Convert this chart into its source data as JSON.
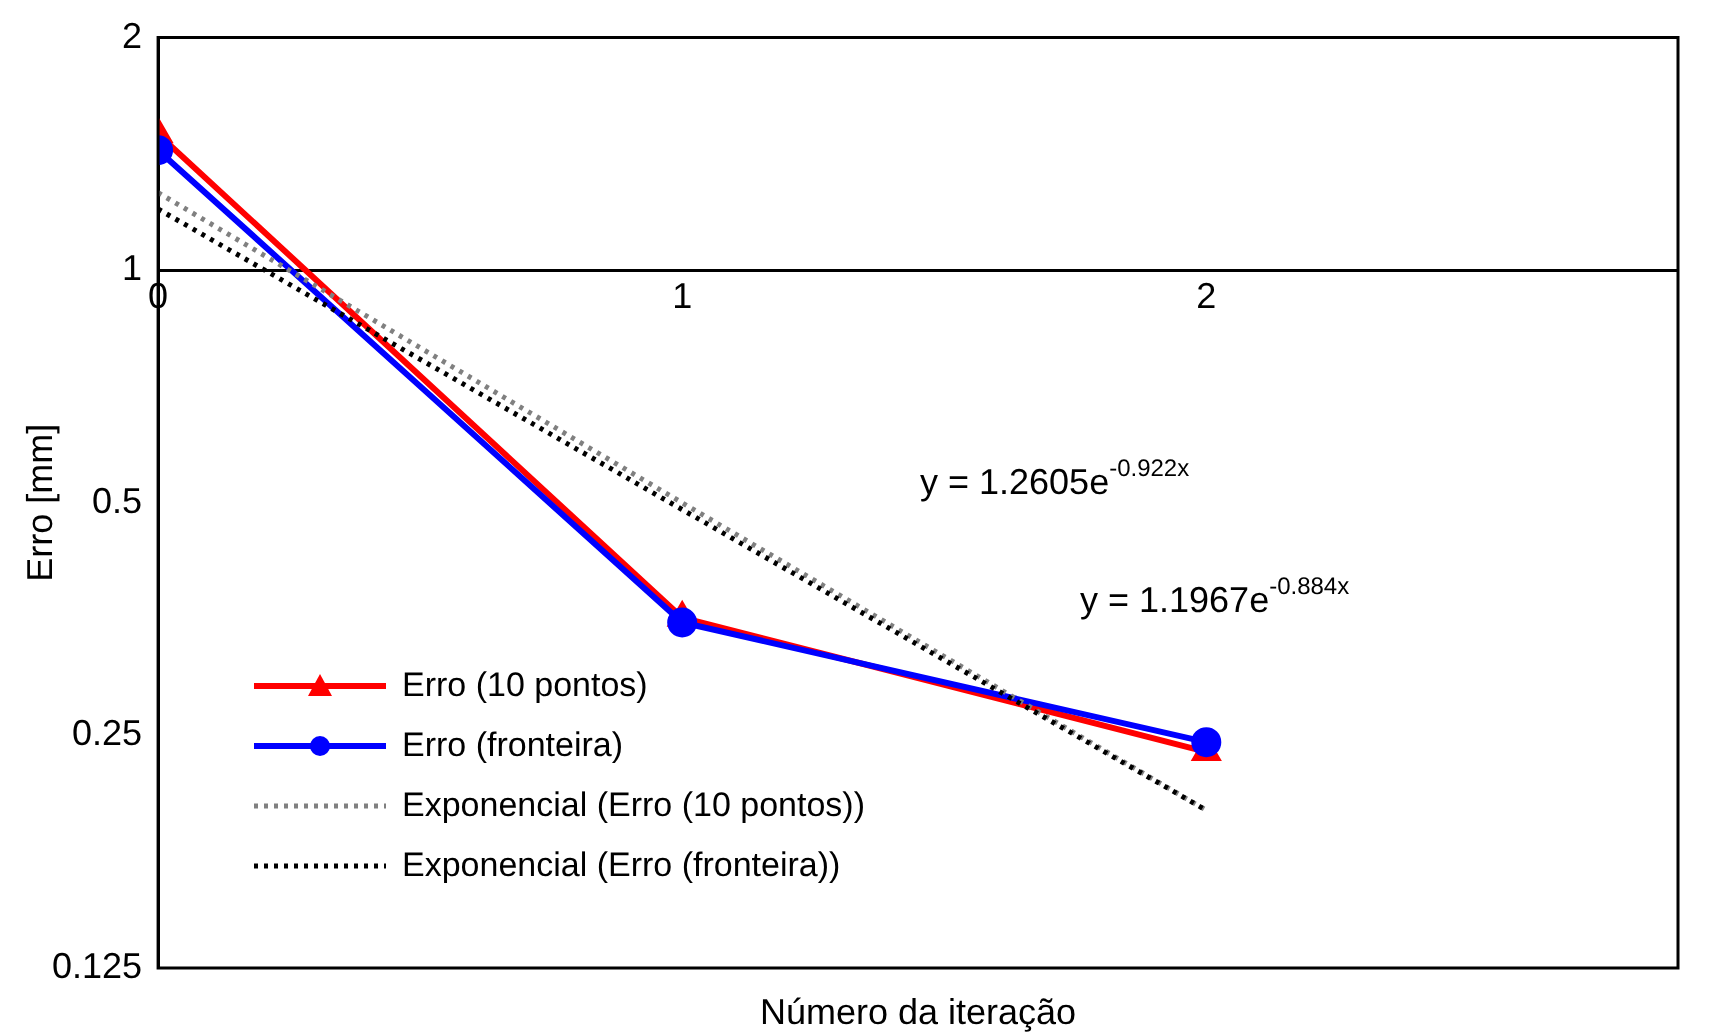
{
  "chart_data": {
    "type": "line",
    "xlabel": "Número da iteração",
    "ylabel": "Erro [mm]",
    "x": [
      0,
      1,
      2
    ],
    "xlim": [
      0,
      2.9
    ],
    "xticks": [
      0,
      1,
      2
    ],
    "ylim": [
      0.125,
      2
    ],
    "yticks": [
      0.125,
      0.25,
      0.5,
      1,
      2
    ],
    "log": true,
    "grid": false,
    "legend": "bottom left",
    "series": [
      {
        "name": "Erro (10 pontos)",
        "color": "#ff0000",
        "values": [
          1.5,
          0.355,
          0.238
        ],
        "marker": "triangle",
        "line_style": "solid"
      },
      {
        "name": "Erro (fronteira)",
        "color": "#0000ff",
        "values": [
          1.43,
          0.35,
          0.245
        ],
        "marker": "circle",
        "line_style": "solid"
      },
      {
        "name": "Exponencial (Erro (10 pontos))",
        "color": "#808080",
        "values": [
          1.26,
          0.5,
          0.2
        ],
        "marker": "none",
        "line_style": "dotted"
      },
      {
        "name": "Exponencial (Erro (fronteira))",
        "color": "#000000",
        "values": [
          1.2,
          0.49,
          0.2
        ],
        "marker": "none",
        "line_style": "dotted"
      }
    ],
    "annotations": [
      "y = 1.2605e$^{-0.922x}$",
      "y = 1.1967e$^{-0.884x}$"
    ]
  }
}
